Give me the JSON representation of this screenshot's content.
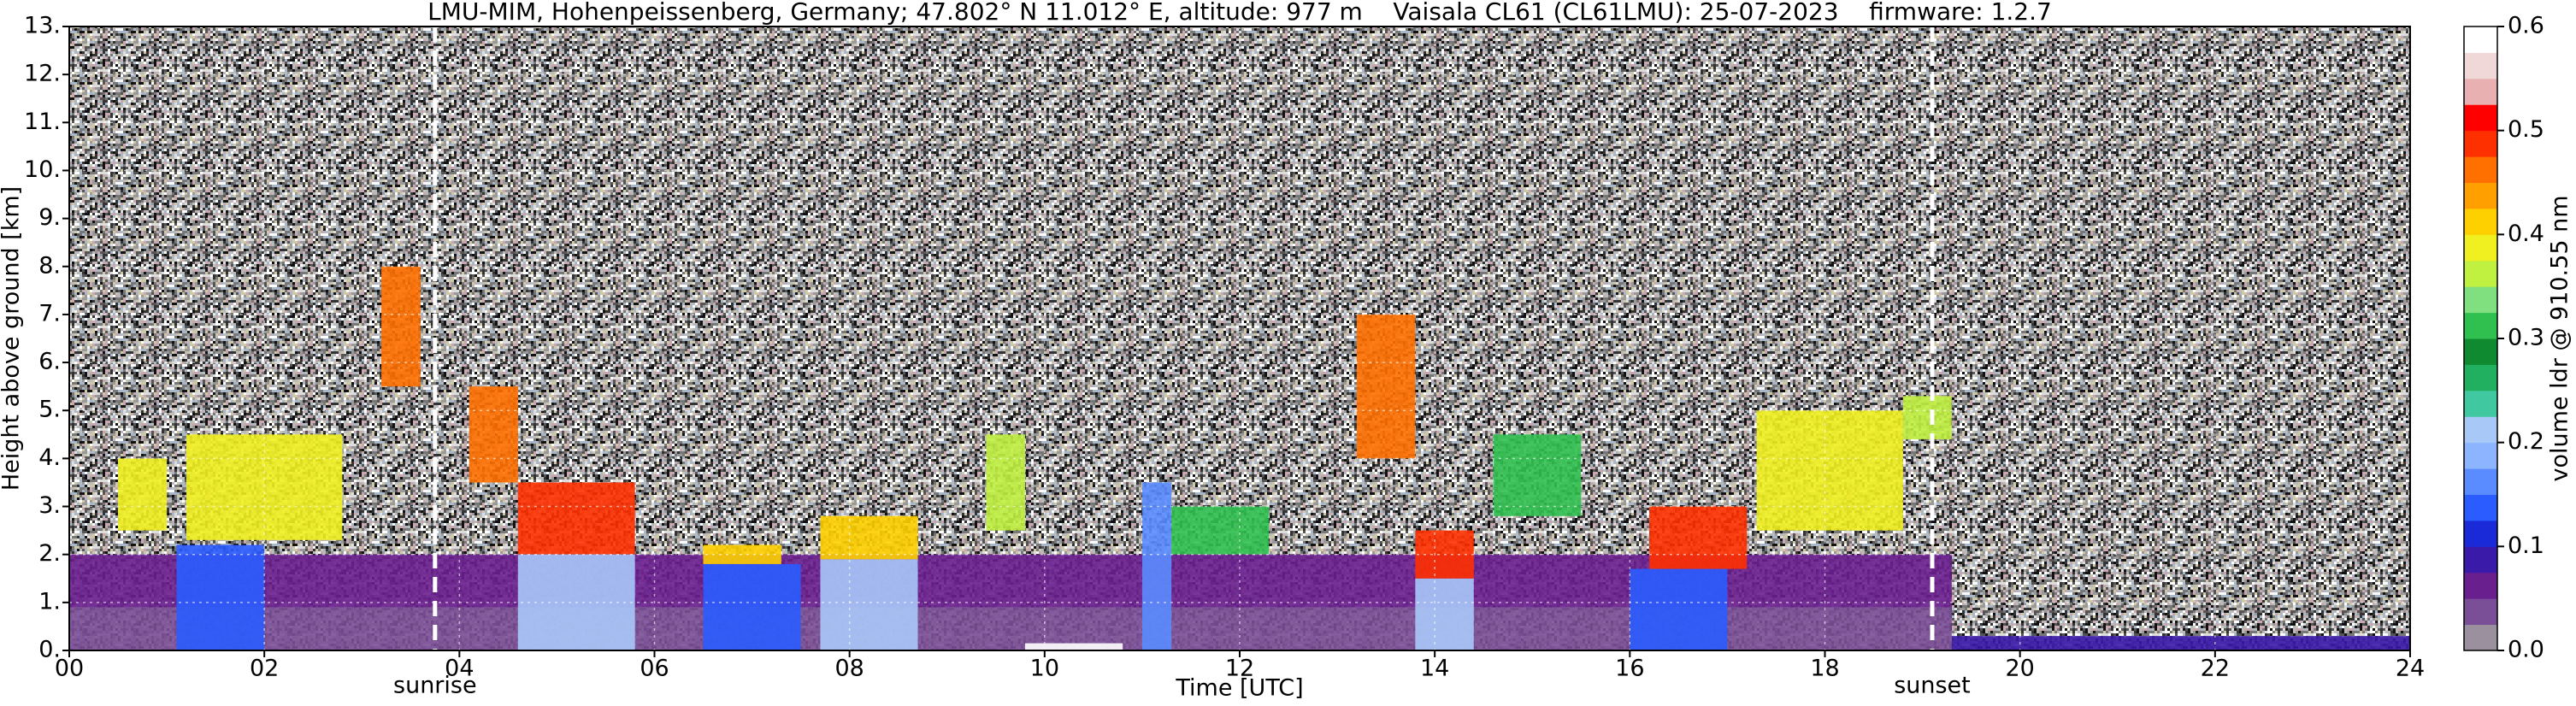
{
  "chart_data": {
    "type": "heatmap",
    "title": "LMU-MIM, Hohenpeissenberg, Germany; 47.802° N 11.012° E, altitude: 977 m    Vaisala CL61 (CL61LMU): 25-07-2023    firmware: 1.2.7",
    "x_label": "Time [UTC]",
    "y_label": "Height above ground [km]",
    "xlim": [
      0,
      24
    ],
    "xticks": [
      {
        "value": 0,
        "label": "00"
      },
      {
        "value": 2,
        "label": "02"
      },
      {
        "value": 4,
        "label": "04"
      },
      {
        "value": 6,
        "label": "06"
      },
      {
        "value": 8,
        "label": "08"
      },
      {
        "value": 10,
        "label": "10"
      },
      {
        "value": 12,
        "label": "12"
      },
      {
        "value": 14,
        "label": "14"
      },
      {
        "value": 16,
        "label": "16"
      },
      {
        "value": 18,
        "label": "18"
      },
      {
        "value": 20,
        "label": "20"
      },
      {
        "value": 22,
        "label": "22"
      },
      {
        "value": 24,
        "label": "24"
      }
    ],
    "ylim": [
      0,
      13
    ],
    "yticks": [
      {
        "value": 0,
        "label": "0."
      },
      {
        "value": 1,
        "label": "1."
      },
      {
        "value": 2,
        "label": "2."
      },
      {
        "value": 3,
        "label": "3."
      },
      {
        "value": 4,
        "label": "4."
      },
      {
        "value": 5,
        "label": "5."
      },
      {
        "value": 6,
        "label": "6."
      },
      {
        "value": 7,
        "label": "7."
      },
      {
        "value": 8,
        "label": "8."
      },
      {
        "value": 9,
        "label": "9."
      },
      {
        "value": 10,
        "label": "10."
      },
      {
        "value": 11,
        "label": "11."
      },
      {
        "value": 12,
        "label": "12."
      },
      {
        "value": 13,
        "label": "13."
      }
    ],
    "grid": true,
    "annotations": [
      {
        "x": 3.75,
        "label": "sunrise"
      },
      {
        "x": 19.1,
        "label": "sunset"
      }
    ],
    "colorbar": {
      "label": "volume ldr @ 910.55 nm",
      "clim": [
        0,
        0.6
      ],
      "ticks": [
        {
          "value": 0,
          "label": "0.0"
        },
        {
          "value": 0.1,
          "label": "0.1"
        },
        {
          "value": 0.2,
          "label": "0.2"
        },
        {
          "value": 0.3,
          "label": "0.3"
        },
        {
          "value": 0.4,
          "label": "0.4"
        },
        {
          "value": 0.5,
          "label": "0.5"
        },
        {
          "value": 0.6,
          "label": "0.6"
        }
      ],
      "colors": [
        "#9a909e",
        "#7b4f97",
        "#6a1f8f",
        "#3a1aa8",
        "#1a2ad8",
        "#2a5cff",
        "#5a8cff",
        "#8cb4ff",
        "#a8c8f8",
        "#40c8a0",
        "#20b060",
        "#108a30",
        "#30c050",
        "#80e080",
        "#c0f040",
        "#f0f020",
        "#ffd000",
        "#ffa000",
        "#ff7000",
        "#ff3000",
        "#ff0000",
        "#e8b0b0",
        "#f0d8d8",
        "#ffffff"
      ]
    },
    "layers": [
      {
        "x": [
          0,
          19.3
        ],
        "y": [
          0,
          0.9
        ],
        "value": 0.04
      },
      {
        "x": [
          0,
          19.3
        ],
        "y": [
          0.9,
          2
        ],
        "value": 0.06
      },
      {
        "x": [
          19.3,
          24
        ],
        "y": [
          0,
          0.3
        ],
        "value": 0.08
      },
      {
        "x": [
          9.8,
          10.8
        ],
        "y": [
          0,
          0.15
        ],
        "value": 0.58
      },
      {
        "x": [
          1.1,
          2.0
        ],
        "y": [
          0,
          2.2
        ],
        "value": 0.13
      },
      {
        "x": [
          0.5,
          1.0
        ],
        "y": [
          2.5,
          4
        ],
        "value": 0.38
      },
      {
        "x": [
          1.2,
          2.8
        ],
        "y": [
          2.3,
          4.5
        ],
        "value": 0.38
      },
      {
        "x": [
          3.2,
          3.6
        ],
        "y": [
          5.5,
          8
        ],
        "value": 0.46
      },
      {
        "x": [
          4.1,
          4.6
        ],
        "y": [
          3.5,
          5.5
        ],
        "value": 0.46
      },
      {
        "x": [
          4.6,
          5.8
        ],
        "y": [
          2,
          3.5
        ],
        "value": 0.48
      },
      {
        "x": [
          4.6,
          5.8
        ],
        "y": [
          0,
          2
        ],
        "value": 0.2
      },
      {
        "x": [
          6.5,
          7.5
        ],
        "y": [
          0,
          1.8
        ],
        "value": 0.13
      },
      {
        "x": [
          6.5,
          7.3
        ],
        "y": [
          1.8,
          2.2
        ],
        "value": 0.42
      },
      {
        "x": [
          7.7,
          8.7
        ],
        "y": [
          0,
          1.9
        ],
        "value": 0.2
      },
      {
        "x": [
          7.7,
          8.7
        ],
        "y": [
          1.9,
          2.8
        ],
        "value": 0.42
      },
      {
        "x": [
          9.4,
          9.8
        ],
        "y": [
          2.5,
          4.5
        ],
        "value": 0.35
      },
      {
        "x": [
          11,
          11.3
        ],
        "y": [
          0,
          3.5
        ],
        "value": 0.15
      },
      {
        "x": [
          11.3,
          12.3
        ],
        "y": [
          2,
          3
        ],
        "value": 0.3
      },
      {
        "x": [
          13.2,
          13.8
        ],
        "y": [
          4,
          7
        ],
        "value": 0.46
      },
      {
        "x": [
          13.8,
          14.4
        ],
        "y": [
          0,
          1.5
        ],
        "value": 0.2
      },
      {
        "x": [
          13.8,
          14.4
        ],
        "y": [
          1.5,
          2.5
        ],
        "value": 0.48
      },
      {
        "x": [
          14.6,
          15.5
        ],
        "y": [
          2.8,
          4.5
        ],
        "value": 0.32
      },
      {
        "x": [
          16,
          17
        ],
        "y": [
          0,
          1.7
        ],
        "value": 0.13
      },
      {
        "x": [
          16.2,
          17.2
        ],
        "y": [
          1.7,
          3
        ],
        "value": 0.48
      },
      {
        "x": [
          17.3,
          18.8
        ],
        "y": [
          2.5,
          5
        ],
        "value": 0.38
      },
      {
        "x": [
          18.8,
          19.3
        ],
        "y": [
          4.4,
          5.3
        ],
        "value": 0.35
      }
    ]
  }
}
